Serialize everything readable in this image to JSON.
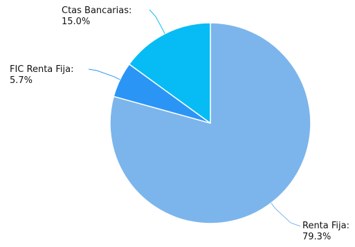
{
  "chart_data": {
    "type": "pie",
    "slices": [
      {
        "label": "Renta Fija:",
        "value_label": "79.3%",
        "value": 79.3,
        "color": "#7cb5ec"
      },
      {
        "label": "FIC Renta Fija:",
        "value_label": "5.7%",
        "value": 5.7,
        "color": "#2b95f6"
      },
      {
        "label": "Ctas Bancarias:",
        "value_label": "15.0%",
        "value": 15.0,
        "color": "#07bcf4"
      }
    ],
    "start_angle": "12 o'clock",
    "direction": "clockwise",
    "legend": "none",
    "data_labels": "outside with connectors"
  }
}
